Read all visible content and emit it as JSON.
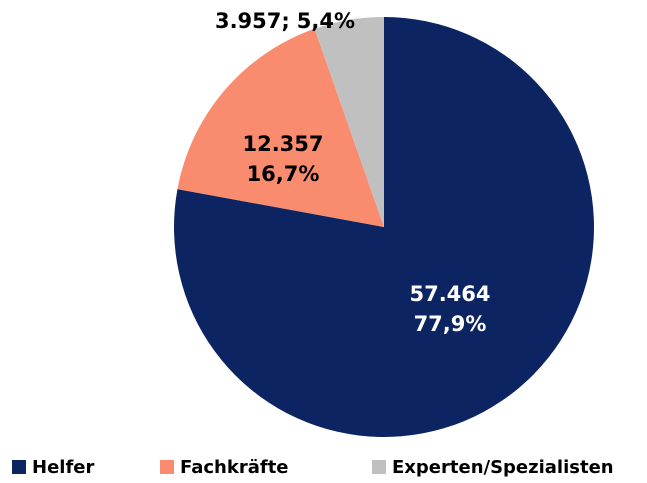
{
  "chart_data": {
    "type": "pie",
    "categories": [
      "Helfer",
      "Fachkräfte",
      "Experten/Spezialisten"
    ],
    "values": [
      57464,
      12357,
      3957
    ],
    "value_labels": [
      "57.464",
      "12.357",
      "3.957;"
    ],
    "percents": [
      77.9,
      16.7,
      5.4
    ],
    "percent_labels": [
      "77,9%",
      "16,7%",
      "5,4%"
    ],
    "colors": [
      "#0c2461",
      "#f98b6e",
      "#c0c0c0"
    ],
    "label_colors": [
      "#ffffff",
      "#000000",
      "#000000"
    ],
    "legend": "bottom"
  }
}
